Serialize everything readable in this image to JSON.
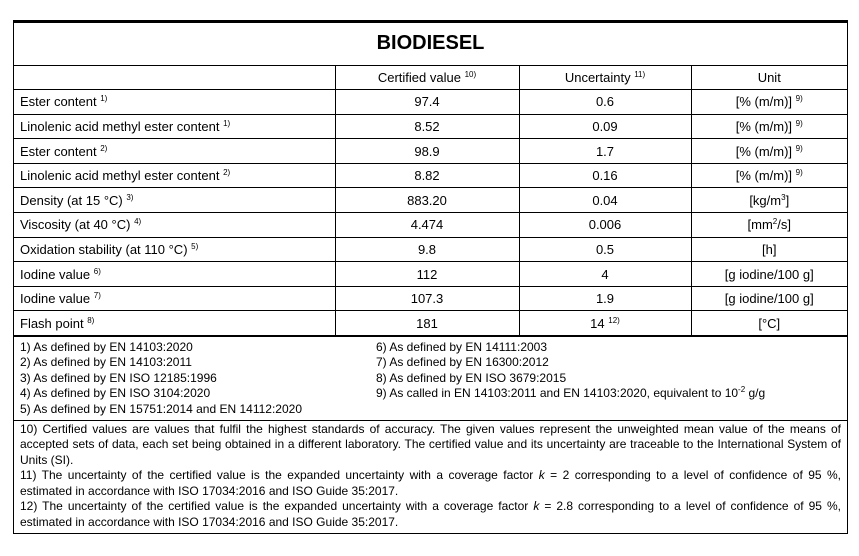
{
  "title": "BIODIESEL",
  "headers": {
    "certified": "Certified value",
    "certified_note": "10)",
    "uncertainty": "Uncertainty",
    "uncertainty_note": "11)",
    "unit": "Unit"
  },
  "rows": [
    {
      "name": "Ester content",
      "note": "1)",
      "value": "97.4",
      "unc": "0.6",
      "unc_note": "",
      "unit": "[% (m/m)]",
      "unit_sup": "9)",
      "unit_tail": ""
    },
    {
      "name": "Linolenic acid methyl ester content",
      "note": "1)",
      "value": "8.52",
      "unc": "0.09",
      "unc_note": "",
      "unit": "[% (m/m)]",
      "unit_sup": "9)",
      "unit_tail": ""
    },
    {
      "name": "Ester content",
      "note": "2)",
      "value": "98.9",
      "unc": "1.7",
      "unc_note": "",
      "unit": "[% (m/m)]",
      "unit_sup": "9)",
      "unit_tail": ""
    },
    {
      "name": "Linolenic acid methyl ester content",
      "note": "2)",
      "value": "8.82",
      "unc": "0.16",
      "unc_note": "",
      "unit": "[% (m/m)]",
      "unit_sup": "9)",
      "unit_tail": ""
    },
    {
      "name": "Density (at 15 °C)",
      "note": "3)",
      "value": "883.20",
      "unc": "0.04",
      "unc_note": "",
      "unit": "[kg/m",
      "unit_sup": "3",
      "unit_tail": "]"
    },
    {
      "name": "Viscosity (at 40 °C)",
      "note": "4)",
      "value": "4.474",
      "unc": "0.006",
      "unc_note": "",
      "unit": "[mm",
      "unit_sup": "2",
      "unit_tail": "/s]"
    },
    {
      "name": "Oxidation stability (at 110 °C)",
      "note": "5)",
      "value": "9.8",
      "unc": "0.5",
      "unc_note": "",
      "unit": "[h]",
      "unit_sup": "",
      "unit_tail": ""
    },
    {
      "name": "Iodine value",
      "note": "6)",
      "value": "112",
      "unc": "4",
      "unc_note": "",
      "unit": "[g iodine/100 g]",
      "unit_sup": "",
      "unit_tail": ""
    },
    {
      "name": "Iodine value",
      "note": "7)",
      "value": "107.3",
      "unc": "1.9",
      "unc_note": "",
      "unit": "[g iodine/100 g]",
      "unit_sup": "",
      "unit_tail": ""
    },
    {
      "name": "Flash point",
      "note": "8)",
      "value": "181",
      "unc": "14",
      "unc_note": "12)",
      "unit": "[°C]",
      "unit_sup": "",
      "unit_tail": ""
    }
  ],
  "footnotes_left": [
    "1) As defined by EN 14103:2020",
    "2) As defined by EN 14103:2011",
    "3) As defined by EN ISO 12185:1996",
    "4) As defined by EN ISO 3104:2020",
    "5) As defined by EN 15751:2014 and EN 14112:2020"
  ],
  "footnotes_right": [
    "6) As defined by EN 14111:2003",
    "7) As defined by EN 16300:2012",
    "8) As defined by EN ISO 3679:2015"
  ],
  "footnote9": {
    "text": "9) As called in EN 14103:2011 and EN 14103:2020, equivalent to 10",
    "sup": "-2",
    "tail": " g/g"
  },
  "note10": "10) Certified values are values that fulfil the highest standards of accuracy. The given values represent the unweighted mean value of the means of accepted sets of data, each set being obtained in a different laboratory. The certified value and its uncertainty are traceable to the International System of Units (SI).",
  "note11": {
    "a": "11) The uncertainty of the certified value is the expanded uncertainty with a coverage factor ",
    "k": "k",
    "b": " = 2 corresponding to a level of confidence of 95 %, estimated in accordance with ISO 17034:2016 and ISO Guide 35:2017."
  },
  "note12": {
    "a": "12) The uncertainty of the certified value is the expanded uncertainty with a coverage factor ",
    "k": "k",
    "b": " = 2.8 corresponding to a level of confidence of 95 %, estimated in accordance with ISO 17034:2016 and ISO Guide 35:2017."
  }
}
